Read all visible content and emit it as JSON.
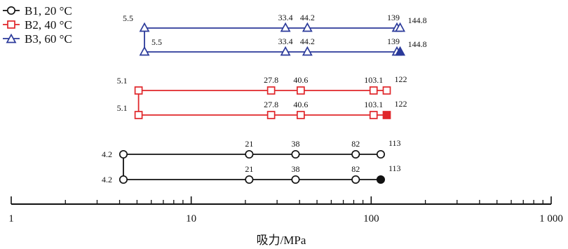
{
  "chart_data": {
    "type": "line",
    "xscale": "log",
    "xlim": [
      1,
      1000
    ],
    "xlabel": "吸力/MPa",
    "ylabel": "",
    "title": "",
    "grid": false,
    "legend": "top-left",
    "xticks": [
      {
        "value": 1,
        "label": "1"
      },
      {
        "value": 10,
        "label": "10"
      },
      {
        "value": 100,
        "label": "100"
      },
      {
        "value": 1000,
        "label": "1 000"
      }
    ],
    "series": [
      {
        "name": "B1, 20 °C",
        "color": "#111111",
        "marker": "circle",
        "paths": [
          {
            "x": [
              4.2,
              21,
              38,
              82,
              113
            ],
            "labels": [
              "4.2",
              "21",
              "38",
              "82",
              "113"
            ],
            "filled_last": false
          },
          {
            "x": [
              4.2,
              21,
              38,
              82,
              113
            ],
            "labels": [
              "4.2",
              "21",
              "38",
              "82",
              "113"
            ],
            "filled_last": true
          }
        ]
      },
      {
        "name": "B2, 40 °C",
        "color": "#e0262a",
        "marker": "square",
        "paths": [
          {
            "x": [
              5.1,
              27.8,
              40.6,
              103.1,
              122
            ],
            "labels": [
              "5.1",
              "27.8",
              "40.6",
              "103.1",
              "122"
            ],
            "filled_last": false
          },
          {
            "x": [
              5.1,
              27.8,
              40.6,
              103.1,
              122
            ],
            "labels": [
              "5.1",
              "27.8",
              "40.6",
              "103.1",
              "122"
            ],
            "filled_last": true
          }
        ]
      },
      {
        "name": "B3, 60 °C",
        "color": "#2b3a9a",
        "marker": "triangle",
        "paths": [
          {
            "x": [
              5.5,
              33.4,
              44.2,
              139,
              144.8
            ],
            "labels": [
              "5.5",
              "33.4",
              "44.2",
              "139",
              "144.8"
            ],
            "filled_last": false
          },
          {
            "x": [
              5.5,
              33.4,
              44.2,
              139,
              144.8
            ],
            "labels": [
              "5.5",
              "33.4",
              "44.2",
              "139",
              "144.8"
            ],
            "filled_last": true
          }
        ]
      }
    ]
  }
}
